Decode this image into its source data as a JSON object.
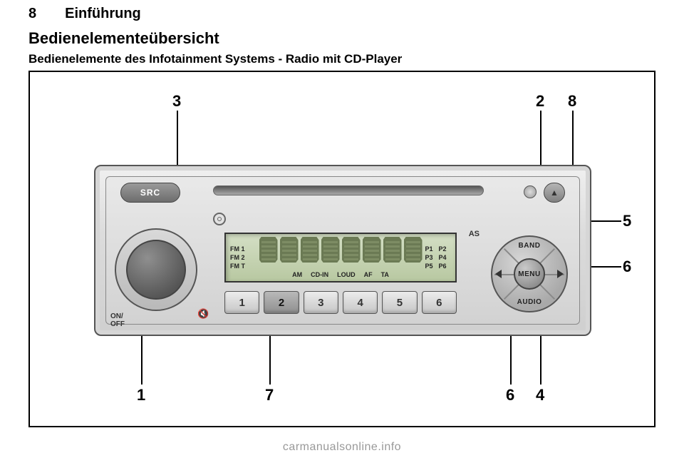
{
  "page": {
    "number": "8",
    "chapter": "Einführung"
  },
  "headings": {
    "h1": "Bedienelementeübersicht",
    "h2": "Bedienelemente des Infotainment Systems - Radio mit CD-Player"
  },
  "radio": {
    "src_label": "SRC",
    "eject_glyph": "▲",
    "onoff_line1": "ON/",
    "onoff_line2": "OFF",
    "mute_glyph": "🔇",
    "as_label": "AS",
    "lcd_left": [
      "FM 1",
      "FM 2",
      "FM T"
    ],
    "lcd_bottom": [
      "AM",
      "CD-IN",
      "LOUD",
      "AF",
      "TA"
    ],
    "lcd_presets": [
      [
        "P1",
        "P2"
      ],
      [
        "P3",
        "P4"
      ],
      [
        "P5",
        "P6"
      ]
    ],
    "segments": 8,
    "presets": [
      "1",
      "2",
      "3",
      "4",
      "5",
      "6"
    ],
    "active_preset_index": 1,
    "menu": {
      "center": "MENU",
      "top": "BAND",
      "bottom": "AUDIO"
    }
  },
  "callouts": {
    "nums": {
      "1": "1",
      "2": "2",
      "3": "3",
      "4": "4",
      "5": "5",
      "6": "6",
      "7": "7",
      "8": "8"
    }
  },
  "colors": {
    "frame_border": "#000000",
    "radio_border": "#555555",
    "lcd_bg_top": "#d4dfc5",
    "lcd_bg_bottom": "#b8c8a1",
    "seg_fill": "#6b7a54"
  },
  "watermark": "carmanualsonline.info"
}
